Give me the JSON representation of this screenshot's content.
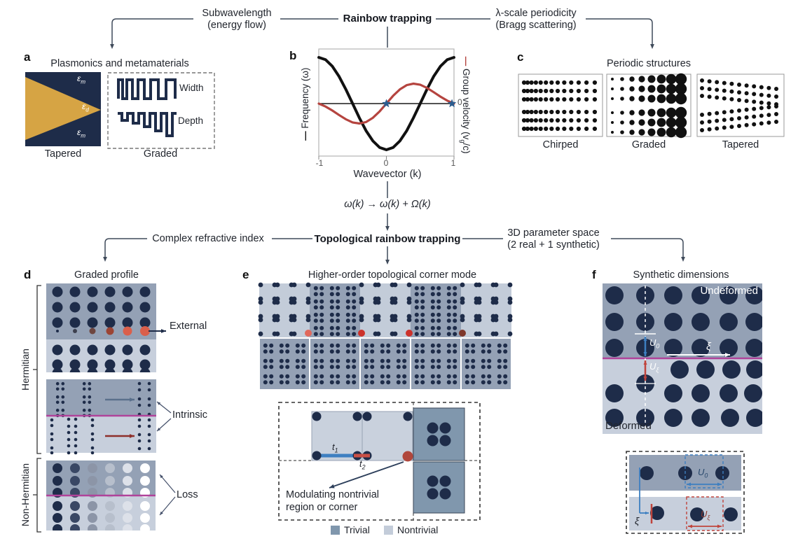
{
  "colors": {
    "navy": "#1e2c49",
    "gold": "#d6a444",
    "line": "#3f4a5a",
    "frame": "#b5b5b5",
    "dark_bg": "#94a1b5",
    "light_bg": "#c7cfdc",
    "trivial": "#8097ad",
    "nontrivial": "#c3ccd9",
    "magenta": "#b0439a",
    "blue": "#3d7fc1",
    "red": "#c0443c",
    "red_bright": "#cc322b",
    "red_soft": "#e0685c",
    "maroon": "#7e382c",
    "star": "#2c5d8f",
    "freq_curve": "#111111",
    "vg_curve": "#b5443f",
    "arrow_gray": "#5a708c",
    "arrow_darkred": "#8e2f2a",
    "external_gradient": [
      "#1e2c49",
      "#3c3f4e",
      "#6e4640",
      "#9c4434",
      "#da5f4b",
      "#da5f4b"
    ],
    "loss_gradient": [
      "#1e2c49",
      "#394764",
      "#8c95a7",
      "#b7bfcc",
      "#dde1e9",
      "#ffffff"
    ]
  },
  "header1": {
    "left_line1": "Subwavelength",
    "left_line2": "(energy flow)",
    "center": "Rainbow trapping",
    "right_line1": "λ-scale periodicity",
    "right_line2": "(Bragg scattering)"
  },
  "transform_formula": "ω(k) → ω(k) + Ω(k)",
  "header2": {
    "left": "Complex refractive index",
    "center": "Topological rainbow trapping",
    "right_line1": "3D parameter space",
    "right_line2": "(2 real + 1 synthetic)"
  },
  "panel_a": {
    "label": "a",
    "title": "Plasmonics and metamaterials",
    "eps": "ε",
    "sub_m": "m",
    "sub_d": "d",
    "width_label": "Width",
    "depth_label": "Depth",
    "caption_left": "Tapered",
    "caption_right": "Graded"
  },
  "panel_b": {
    "label": "b",
    "zero_label": "0"
  },
  "chart_data": {
    "type": "line",
    "xlabel": "Wavevector (k)",
    "ylabel_left": "Frequency (ω)",
    "ylabel_right": "Group velocity (vg/c)",
    "ylabel_right_parts": {
      "pre": "Group velocity (v",
      "sub": "g",
      "post": "/c)"
    },
    "xlim": [
      -1,
      1
    ],
    "xticks": [
      -1,
      0,
      1
    ],
    "grid": false,
    "zero_line": true,
    "x": [
      -1,
      -0.9,
      -0.8,
      -0.7,
      -0.6,
      -0.5,
      -0.4,
      -0.3,
      -0.2,
      -0.1,
      0,
      0.1,
      0.2,
      0.3,
      0.4,
      0.5,
      0.6,
      0.7,
      0.8,
      0.9,
      1
    ],
    "series": [
      {
        "name": "Frequency (ω)",
        "axis": "left",
        "color": "#111111",
        "values": [
          1,
          0.951,
          0.809,
          0.588,
          0.309,
          0,
          -0.309,
          -0.588,
          -0.809,
          -0.951,
          -1,
          -0.951,
          -0.809,
          -0.588,
          -0.309,
          0,
          0.309,
          0.588,
          0.809,
          0.951,
          1
        ]
      },
      {
        "name": "Group velocity (vg/c)",
        "axis": "right",
        "color": "#b5443f",
        "values": [
          0,
          -0.064,
          -0.15,
          -0.247,
          -0.339,
          -0.408,
          -0.432,
          -0.4,
          -0.308,
          -0.168,
          0,
          0.168,
          0.308,
          0.4,
          0.432,
          0.408,
          0.339,
          0.247,
          0.15,
          0.064,
          0
        ]
      }
    ],
    "markers": [
      {
        "shape": "star",
        "x": 0,
        "y": 0
      },
      {
        "shape": "star",
        "x": 0.97,
        "y": 0
      }
    ]
  },
  "panel_c": {
    "label": "c",
    "title": "Periodic structures",
    "captions": [
      "Chirped",
      "Graded",
      "Tapered"
    ]
  },
  "panel_d": {
    "label": "d",
    "title": "Graded profile",
    "bracket_top": "Hermitian",
    "bracket_bottom": "Non-Hermitian",
    "external": "External",
    "intrinsic": "Intrinsic",
    "loss": "Loss"
  },
  "panel_e": {
    "label": "e",
    "title": "Higher-order topological corner mode",
    "t": "t",
    "t1_sub": "1",
    "t2_sub": "2",
    "note_line1": "Modulating nontrivial",
    "note_line2": "region or corner",
    "legend": [
      {
        "label": "Trivial"
      },
      {
        "label": "Nontrivial"
      }
    ]
  },
  "panel_f": {
    "label": "f",
    "title": "Synthetic dimensions",
    "undeformed": "Undeformed",
    "deformed": "Deformed",
    "u": "U",
    "u0_sub": "0",
    "uxi_sub": "ξ",
    "xi": "ξ"
  }
}
